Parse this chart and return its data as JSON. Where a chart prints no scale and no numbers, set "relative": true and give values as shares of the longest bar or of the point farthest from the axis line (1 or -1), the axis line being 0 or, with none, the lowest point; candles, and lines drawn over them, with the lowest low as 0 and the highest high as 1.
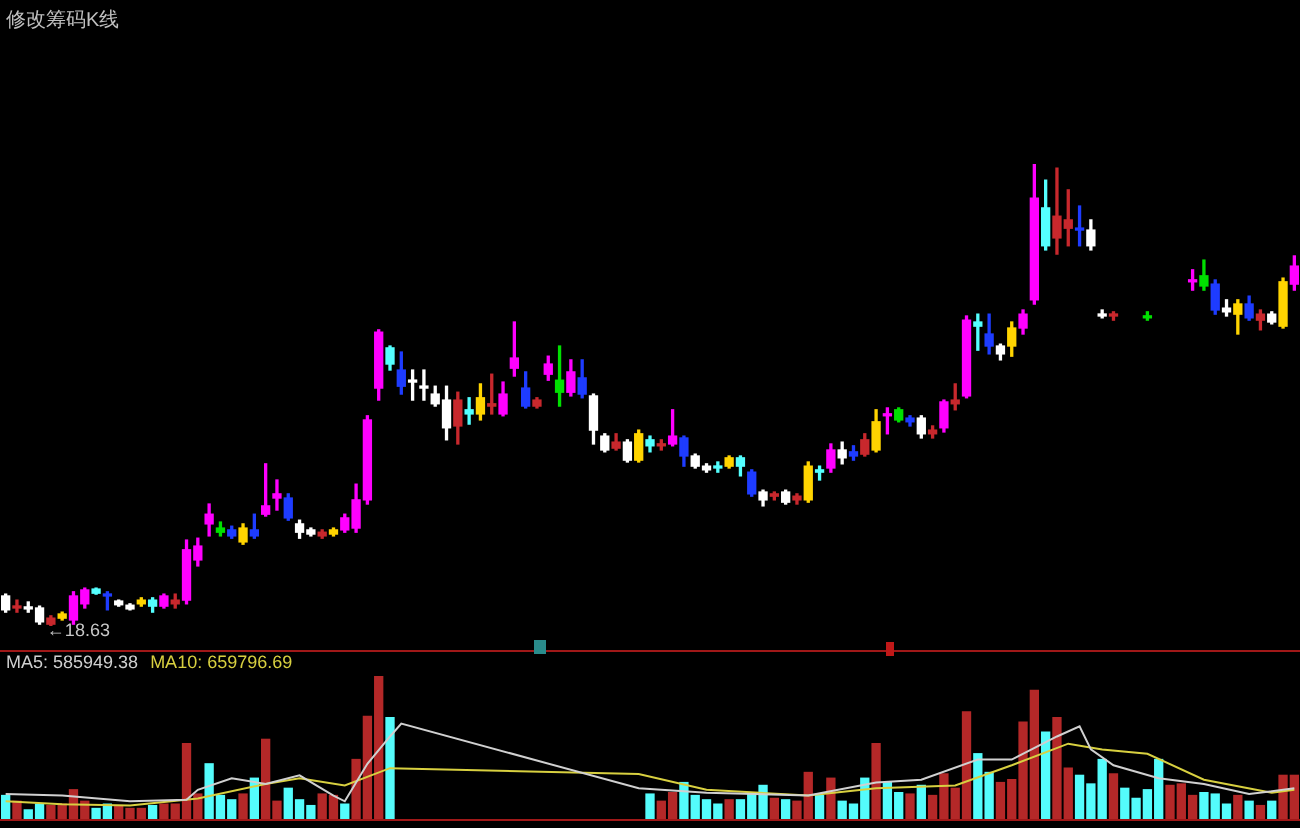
{
  "chart_data": [
    {
      "type": "candlestick",
      "title": "修改筹码K线",
      "relative": true,
      "categories": [
        null,
        null,
        null,
        null,
        null,
        null,
        null,
        null,
        null,
        null,
        null,
        null,
        null,
        null,
        null,
        null,
        null,
        null,
        null,
        null,
        null,
        null,
        null,
        null,
        null,
        null,
        null,
        null,
        null,
        null,
        null,
        null,
        null,
        null,
        null,
        null,
        null,
        null,
        null,
        null,
        null,
        null,
        null,
        null,
        null,
        null,
        null,
        null,
        null,
        null,
        null,
        null,
        null,
        null,
        null,
        null,
        null,
        null,
        null,
        null,
        null,
        null,
        null,
        null,
        null,
        null,
        null,
        null,
        null,
        null,
        null,
        null,
        null,
        null,
        null,
        null,
        null,
        null,
        null,
        null,
        null,
        null,
        null,
        null,
        null,
        null,
        null,
        null,
        null,
        null,
        null,
        null,
        null,
        null,
        null,
        null,
        null,
        null,
        null,
        null,
        null,
        null,
        null,
        null,
        null,
        null,
        null,
        null,
        null,
        null,
        null,
        null,
        null,
        null,
        null
      ],
      "ohlc": [
        [
          0.035,
          0.069,
          0.03,
          0.065
        ],
        [
          0.039,
          0.056,
          0.03,
          0.043
        ],
        [
          0.037,
          0.052,
          0.03,
          0.039
        ],
        [
          0.009,
          0.043,
          0.004,
          0.039
        ],
        [
          0.004,
          0.022,
          0,
          0.017
        ],
        [
          0.017,
          0.03,
          0.013,
          0.026
        ],
        [
          0.013,
          0.074,
          0.004,
          0.065
        ],
        [
          0.048,
          0.082,
          0.039,
          0.078
        ],
        [
          0.071,
          0.082,
          0.069,
          0.08
        ],
        [
          0.065,
          0.074,
          0.035,
          0.069
        ],
        [
          0.046,
          0.056,
          0.043,
          0.054
        ],
        [
          0.037,
          0.048,
          0.035,
          0.045
        ],
        [
          0.048,
          0.061,
          0.043,
          0.056
        ],
        [
          0.043,
          0.061,
          0.03,
          0.056
        ],
        [
          0.043,
          0.069,
          0.039,
          0.065
        ],
        [
          0.048,
          0.069,
          0.039,
          0.056
        ],
        [
          0.056,
          0.186,
          0.048,
          0.165
        ],
        [
          0.143,
          0.19,
          0.13,
          0.173
        ],
        [
          0.221,
          0.264,
          0.195,
          0.242
        ],
        [
          0.203,
          0.225,
          0.195,
          0.212
        ],
        [
          0.195,
          0.216,
          0.19,
          0.208
        ],
        [
          0.182,
          0.221,
          0.177,
          0.212
        ],
        [
          0.195,
          0.242,
          0.19,
          0.208
        ],
        [
          0.242,
          0.351,
          0.238,
          0.26
        ],
        [
          0.277,
          0.316,
          0.251,
          0.286
        ],
        [
          0.234,
          0.286,
          0.229,
          0.277
        ],
        [
          0.203,
          0.229,
          0.19,
          0.221
        ],
        [
          0.199,
          0.212,
          0.195,
          0.208
        ],
        [
          0.195,
          0.208,
          0.19,
          0.203
        ],
        [
          0.199,
          0.212,
          0.195,
          0.208
        ],
        [
          0.208,
          0.242,
          0.203,
          0.234
        ],
        [
          0.212,
          0.307,
          0.203,
          0.273
        ],
        [
          0.273,
          0.455,
          0.264,
          0.446
        ],
        [
          0.515,
          0.641,
          0.489,
          0.636
        ],
        [
          0.567,
          0.606,
          0.554,
          0.602
        ],
        [
          0.519,
          0.593,
          0.502,
          0.554
        ],
        [
          0.528,
          0.554,
          0.489,
          0.532
        ],
        [
          0.515,
          0.554,
          0.489,
          0.519
        ],
        [
          0.481,
          0.519,
          0.476,
          0.502
        ],
        [
          0.429,
          0.519,
          0.403,
          0.489
        ],
        [
          0.433,
          0.506,
          0.394,
          0.489
        ],
        [
          0.459,
          0.494,
          0.437,
          0.468
        ],
        [
          0.459,
          0.524,
          0.446,
          0.494
        ],
        [
          0.476,
          0.545,
          0.459,
          0.481
        ],
        [
          0.459,
          0.528,
          0.455,
          0.502
        ],
        [
          0.558,
          0.658,
          0.541,
          0.58
        ],
        [
          0.476,
          0.55,
          0.472,
          0.515
        ],
        [
          0.476,
          0.494,
          0.472,
          0.489
        ],
        [
          0.545,
          0.584,
          0.532,
          0.567
        ],
        [
          0.506,
          0.606,
          0.476,
          0.532
        ],
        [
          0.506,
          0.576,
          0.498,
          0.55
        ],
        [
          0.502,
          0.576,
          0.494,
          0.537
        ],
        [
          0.424,
          0.502,
          0.394,
          0.498
        ],
        [
          0.381,
          0.416,
          0.377,
          0.411
        ],
        [
          0.385,
          0.416,
          0.381,
          0.398
        ],
        [
          0.359,
          0.403,
          0.355,
          0.398
        ],
        [
          0.359,
          0.424,
          0.355,
          0.416
        ],
        [
          0.39,
          0.411,
          0.377,
          0.403
        ],
        [
          0.39,
          0.403,
          0.381,
          0.394
        ],
        [
          0.394,
          0.468,
          0.39,
          0.411
        ],
        [
          0.368,
          0.411,
          0.346,
          0.407
        ],
        [
          0.346,
          0.372,
          0.342,
          0.368
        ],
        [
          0.338,
          0.351,
          0.333,
          0.346
        ],
        [
          0.342,
          0.355,
          0.333,
          0.346
        ],
        [
          0.346,
          0.368,
          0.342,
          0.364
        ],
        [
          0.346,
          0.368,
          0.325,
          0.364
        ],
        [
          0.286,
          0.338,
          0.281,
          0.333
        ],
        [
          0.273,
          0.294,
          0.26,
          0.29
        ],
        [
          0.281,
          0.29,
          0.273,
          0.286
        ],
        [
          0.268,
          0.294,
          0.264,
          0.29
        ],
        [
          0.273,
          0.286,
          0.264,
          0.281
        ],
        [
          0.273,
          0.355,
          0.268,
          0.346
        ],
        [
          0.333,
          0.346,
          0.316,
          0.338
        ],
        [
          0.342,
          0.394,
          0.333,
          0.381
        ],
        [
          0.364,
          0.398,
          0.351,
          0.381
        ],
        [
          0.368,
          0.39,
          0.359,
          0.377
        ],
        [
          0.372,
          0.416,
          0.368,
          0.403
        ],
        [
          0.381,
          0.468,
          0.377,
          0.442
        ],
        [
          0.455,
          0.472,
          0.416,
          0.459
        ],
        [
          0.446,
          0.472,
          0.442,
          0.468
        ],
        [
          0.442,
          0.455,
          0.433,
          0.45
        ],
        [
          0.416,
          0.455,
          0.407,
          0.45
        ],
        [
          0.416,
          0.433,
          0.407,
          0.424
        ],
        [
          0.429,
          0.489,
          0.42,
          0.485
        ],
        [
          0.481,
          0.524,
          0.468,
          0.489
        ],
        [
          0.498,
          0.671,
          0.494,
          0.662
        ],
        [
          0.649,
          0.675,
          0.597,
          0.658
        ],
        [
          0.606,
          0.675,
          0.589,
          0.632
        ],
        [
          0.589,
          0.61,
          0.576,
          0.606
        ],
        [
          0.606,
          0.658,
          0.584,
          0.645
        ],
        [
          0.645,
          0.684,
          0.632,
          0.675
        ],
        [
          0.706,
          1,
          0.697,
          0.926
        ],
        [
          0.823,
          0.965,
          0.814,
          0.905
        ],
        [
          0.84,
          0.991,
          0.805,
          0.887
        ],
        [
          0.861,
          0.944,
          0.823,
          0.879
        ],
        [
          0.857,
          0.909,
          0.823,
          0.861
        ],
        [
          0.823,
          0.879,
          0.814,
          0.857
        ],
        [
          0.671,
          0.684,
          0.667,
          0.675
        ],
        [
          0.671,
          0.68,
          0.662,
          0.675
        ],
        null,
        null,
        [
          0.667,
          0.68,
          0.662,
          0.671
        ],
        null,
        null,
        null,
        [
          0.745,
          0.771,
          0.727,
          0.749
        ],
        [
          0.736,
          0.792,
          0.727,
          0.758
        ],
        [
          0.684,
          0.749,
          0.675,
          0.74
        ],
        [
          0.68,
          0.706,
          0.671,
          0.688
        ],
        [
          0.675,
          0.706,
          0.632,
          0.697
        ],
        [
          0.667,
          0.714,
          0.662,
          0.697
        ],
        [
          0.662,
          0.684,
          0.641,
          0.675
        ],
        [
          0.658,
          0.68,
          0.654,
          0.675
        ],
        [
          0.649,
          0.753,
          0.645,
          0.745
        ],
        [
          0.74,
          0.801,
          0.727,
          0.779
        ]
      ],
      "colors": [
        "#ffffff",
        "#c8282d",
        "#ffffff",
        "#ffffff",
        "#c8282d",
        "#ffd400",
        "#ff00ff",
        "#ff00ff",
        "#54ffff",
        "#1e3cff",
        "#ffffff",
        "#ffffff",
        "#ffd400",
        "#54ffff",
        "#ff00ff",
        "#c8282d",
        "#ff00ff",
        "#ff00ff",
        "#ff00ff",
        "#00e000",
        "#1e3cff",
        "#ffd400",
        "#1e3cff",
        "#ff00ff",
        "#ff00ff",
        "#1e3cff",
        "#ffffff",
        "#ffffff",
        "#c8282d",
        "#ffd400",
        "#ff00ff",
        "#ff00ff",
        "#ff00ff",
        "#ff00ff",
        "#54ffff",
        "#1e3cff",
        "#ffffff",
        "#ffffff",
        "#ffffff",
        "#ffffff",
        "#c8282d",
        "#54ffff",
        "#ffd400",
        "#c8282d",
        "#ff00ff",
        "#ff00ff",
        "#1e3cff",
        "#c8282d",
        "#ff00ff",
        "#00e000",
        "#ff00ff",
        "#1e3cff",
        "#ffffff",
        "#ffffff",
        "#c8282d",
        "#ffffff",
        "#ffd400",
        "#54ffff",
        "#c8282d",
        "#ff00ff",
        "#1e3cff",
        "#ffffff",
        "#ffffff",
        "#54ffff",
        "#ffd400",
        "#54ffff",
        "#1e3cff",
        "#ffffff",
        "#c8282d",
        "#ffffff",
        "#c8282d",
        "#ffd400",
        "#54ffff",
        "#ff00ff",
        "#ffffff",
        "#1e3cff",
        "#c8282d",
        "#ffd400",
        "#ff00ff",
        "#00e000",
        "#1e3cff",
        "#ffffff",
        "#c8282d",
        "#ff00ff",
        "#c8282d",
        "#ff00ff",
        "#54ffff",
        "#1e3cff",
        "#ffffff",
        "#ffd400",
        "#ff00ff",
        "#ff00ff",
        "#54ffff",
        "#c8282d",
        "#c8282d",
        "#1e3cff",
        "#ffffff",
        "#ffffff",
        "#c8282d",
        null,
        null,
        "#00e000",
        null,
        null,
        null,
        "#ff00ff",
        "#00e000",
        "#1e3cff",
        "#ffffff",
        "#ffd400",
        "#1e3cff",
        "#c8282d",
        "#ffffff",
        "#ffd400",
        "#ff00ff"
      ],
      "annotations": [
        {
          "text": "←18.63",
          "y": 0
        }
      ]
    },
    {
      "type": "bar",
      "relative": true,
      "categories": [
        null,
        null,
        null,
        null,
        null,
        null,
        null,
        null,
        null,
        null,
        null,
        null,
        null,
        null,
        null,
        null,
        null,
        null,
        null,
        null,
        null,
        null,
        null,
        null,
        null,
        null,
        null,
        null,
        null,
        null,
        null,
        null,
        null,
        null,
        null,
        null,
        null,
        null,
        null,
        null,
        null,
        null,
        null,
        null,
        null,
        null,
        null,
        null,
        null,
        null,
        null,
        null,
        null,
        null,
        null,
        null,
        null,
        null,
        null,
        null,
        null,
        null,
        null,
        null,
        null,
        null,
        null,
        null,
        null,
        null,
        null,
        null,
        null,
        null,
        null,
        null,
        null,
        null,
        null,
        null,
        null,
        null,
        null,
        null,
        null,
        null,
        null,
        null,
        null,
        null,
        null,
        null,
        null,
        null,
        null,
        null,
        null,
        null,
        null,
        null,
        null,
        null,
        null,
        null,
        null,
        null,
        null,
        null,
        null,
        null,
        null,
        null,
        null,
        null,
        null
      ],
      "series": [
        {
          "type": "bar",
          "values": [
            0.17,
            0.13,
            0.07,
            0.11,
            0.1,
            0.11,
            0.21,
            0.13,
            0.08,
            0.11,
            0.1,
            0.08,
            0.08,
            0.1,
            0.11,
            0.11,
            0.53,
            0.18,
            0.39,
            0.17,
            0.14,
            0.18,
            0.29,
            0.56,
            0.13,
            0.22,
            0.14,
            0.1,
            0.18,
            0.17,
            0.11,
            0.42,
            0.72,
            1,
            0.71,
            null,
            null,
            null,
            null,
            null,
            null,
            null,
            null,
            null,
            null,
            null,
            null,
            null,
            null,
            null,
            null,
            null,
            null,
            null,
            null,
            null,
            null,
            0.18,
            0.13,
            0.19,
            0.26,
            0.17,
            0.14,
            0.11,
            0.14,
            0.14,
            0.19,
            0.24,
            0.15,
            0.14,
            0.13,
            0.33,
            0.17,
            0.29,
            0.13,
            0.11,
            0.29,
            0.53,
            0.26,
            0.19,
            0.18,
            0.24,
            0.17,
            0.32,
            0.22,
            0.75,
            0.46,
            0.33,
            0.26,
            0.28,
            0.68,
            0.9,
            0.61,
            0.71,
            0.36,
            0.31,
            0.25,
            0.42,
            0.32,
            0.22,
            0.15,
            0.21,
            0.42,
            0.24,
            0.25,
            0.17,
            0.19,
            0.18,
            0.11,
            0.17,
            0.13,
            0.1,
            0.13,
            0.31,
            0.31
          ],
          "colors": [
            "#54fcfc",
            "#b42828",
            "#54fcfc",
            "#54fcfc",
            "#b42828",
            "#b42828",
            "#b42828",
            "#b42828",
            "#54fcfc",
            "#54fcfc",
            "#b42828",
            "#b42828",
            "#b42828",
            "#54fcfc",
            "#b42828",
            "#b42828",
            "#b42828",
            "#b42828",
            "#54fcfc",
            "#54fcfc",
            "#54fcfc",
            "#b42828",
            "#54fcfc",
            "#b42828",
            "#b42828",
            "#54fcfc",
            "#54fcfc",
            "#54fcfc",
            "#b42828",
            "#b42828",
            "#54fcfc",
            "#b42828",
            "#b42828",
            "#b42828",
            "#54fcfc",
            null,
            null,
            null,
            null,
            null,
            null,
            null,
            null,
            null,
            null,
            null,
            null,
            null,
            null,
            null,
            null,
            null,
            null,
            null,
            null,
            null,
            null,
            "#54fcfc",
            "#b42828",
            "#b42828",
            "#54fcfc",
            "#54fcfc",
            "#54fcfc",
            "#54fcfc",
            "#b42828",
            "#54fcfc",
            "#54fcfc",
            "#54fcfc",
            "#b42828",
            "#54fcfc",
            "#b42828",
            "#b42828",
            "#54fcfc",
            "#b42828",
            "#54fcfc",
            "#54fcfc",
            "#54fcfc",
            "#b42828",
            "#54fcfc",
            "#54fcfc",
            "#b42828",
            "#54fcfc",
            "#b42828",
            "#b42828",
            "#b42828",
            "#b42828",
            "#54fcfc",
            "#54fcfc",
            "#b42828",
            "#b42828",
            "#b42828",
            "#b42828",
            "#54fcfc",
            "#b42828",
            "#b42828",
            "#54fcfc",
            "#54fcfc",
            "#54fcfc",
            "#b42828",
            "#54fcfc",
            "#54fcfc",
            "#54fcfc",
            "#54fcfc",
            "#b42828",
            "#b42828",
            "#b42828",
            "#54fcfc",
            "#54fcfc",
            "#54fcfc",
            "#b42828",
            "#54fcfc",
            "#b42828",
            "#54fcfc",
            "#b42828",
            "#b42828"
          ]
        },
        {
          "type": "line",
          "name": "MA5: 585949.38",
          "color": "#d0d0d0",
          "values": [
            0.18,
            null,
            null,
            null,
            null,
            0.17,
            null,
            null,
            null,
            null,
            null,
            0.13,
            null,
            null,
            null,
            null,
            0.14,
            0.21,
            null,
            null,
            0.29,
            null,
            null,
            0.25,
            null,
            null,
            0.31,
            null,
            null,
            0.17,
            0.13,
            null,
            0.39,
            null,
            0.58,
            0.67,
            null,
            null,
            null,
            null,
            null,
            null,
            null,
            null,
            null,
            null,
            null,
            null,
            null,
            null,
            null,
            null,
            null,
            null,
            null,
            null,
            0.22,
            null,
            null,
            null,
            null,
            null,
            0.19,
            null,
            null,
            null,
            null,
            null,
            null,
            null,
            null,
            0.17,
            null,
            null,
            null,
            null,
            null,
            0.26,
            null,
            null,
            null,
            0.28,
            null,
            null,
            null,
            null,
            0.42,
            null,
            null,
            0.42,
            null,
            null,
            null,
            0.58,
            null,
            0.65,
            0.49,
            null,
            0.38,
            null,
            null,
            null,
            0.29,
            null,
            null,
            null,
            0.25,
            null,
            null,
            null,
            0.18,
            null,
            null,
            null,
            0.22
          ]
        },
        {
          "type": "line",
          "name": "MA10: 659796.69",
          "color": "#d8d040",
          "values": [
            0.13,
            null,
            null,
            null,
            null,
            0.11,
            null,
            null,
            null,
            null,
            null,
            0.1,
            null,
            null,
            null,
            null,
            null,
            0.15,
            null,
            null,
            null,
            null,
            null,
            0.25,
            null,
            null,
            0.29,
            null,
            null,
            null,
            0.24,
            null,
            null,
            null,
            0.36,
            null,
            null,
            null,
            null,
            null,
            null,
            null,
            null,
            null,
            null,
            null,
            null,
            null,
            null,
            null,
            null,
            null,
            null,
            null,
            null,
            null,
            0.32,
            null,
            null,
            null,
            null,
            null,
            0.21,
            null,
            null,
            null,
            null,
            null,
            null,
            null,
            null,
            0.17,
            null,
            null,
            null,
            null,
            null,
            0.22,
            null,
            null,
            null,
            null,
            null,
            null,
            0.24,
            null,
            null,
            null,
            null,
            0.38,
            null,
            null,
            null,
            null,
            0.53,
            null,
            null,
            0.49,
            null,
            null,
            null,
            0.46,
            null,
            null,
            null,
            null,
            0.28,
            null,
            null,
            null,
            null,
            null,
            0.19,
            null,
            0.21
          ]
        }
      ]
    }
  ]
}
